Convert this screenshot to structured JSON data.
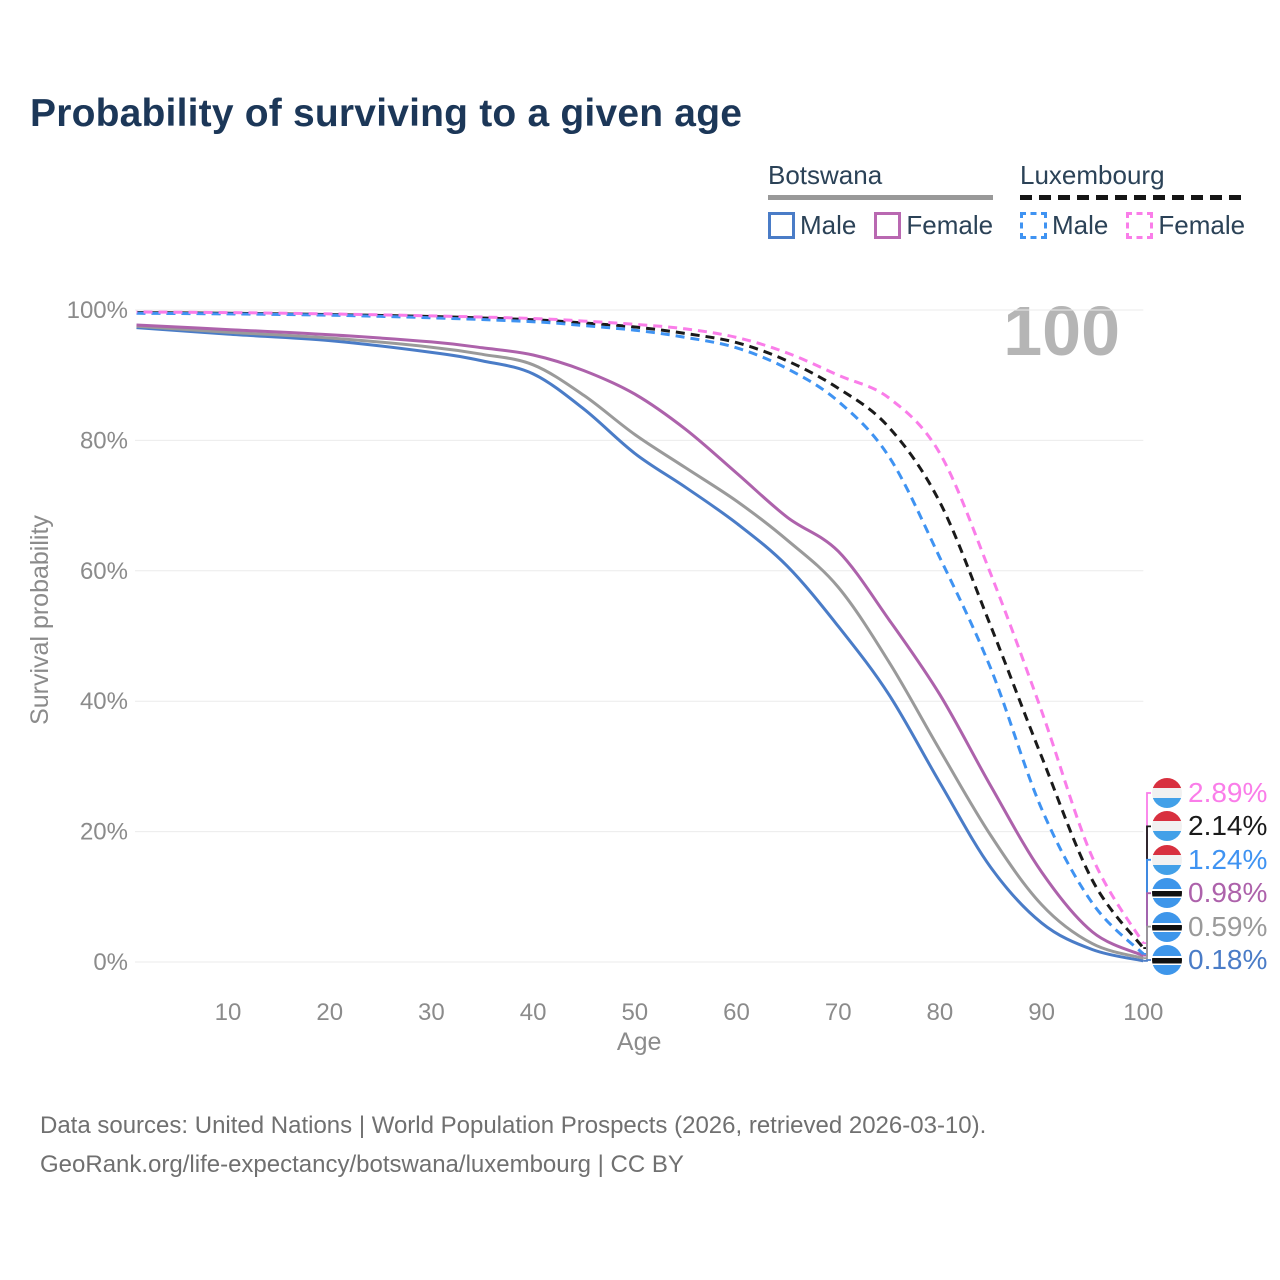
{
  "title": "Probability of surviving to a given age",
  "watermark": "100",
  "legend": {
    "groups": [
      {
        "name": "Botswana",
        "underline_style": "solid",
        "underline_color": "#999999",
        "items": [
          {
            "label": "Male",
            "color": "#4a7cc7",
            "dashed": false
          },
          {
            "label": "Female",
            "color": "#b968b1",
            "dashed": false
          }
        ]
      },
      {
        "name": "Luxembourg",
        "underline_style": "dashed",
        "underline_color": "#151515",
        "items": [
          {
            "label": "Male",
            "color": "#3f93f2",
            "dashed": true
          },
          {
            "label": "Female",
            "color": "#fa7de9",
            "dashed": true
          }
        ]
      }
    ]
  },
  "chart_data": {
    "type": "line",
    "title": "Probability of surviving to a given age",
    "xlabel": "Age",
    "ylabel": "Survival probability",
    "xlim": [
      0,
      100
    ],
    "ylim": [
      0,
      100
    ],
    "grid": "horizontal",
    "x_ticks": [
      "10",
      "20",
      "30",
      "40",
      "50",
      "60",
      "70",
      "80",
      "90",
      "100"
    ],
    "x_tick_values": [
      10,
      20,
      30,
      40,
      50,
      60,
      70,
      80,
      90,
      100
    ],
    "y_ticks": [
      {
        "value": 0,
        "label": "0%"
      },
      {
        "value": 20,
        "label": "20%"
      },
      {
        "value": 40,
        "label": "40%"
      },
      {
        "value": 60,
        "label": "60%"
      },
      {
        "value": 80,
        "label": "80%"
      },
      {
        "value": 100,
        "label": "100%"
      }
    ],
    "series": [
      {
        "id": "luxembourg-female",
        "country": "Luxembourg",
        "sex": "Female",
        "color": "#fa7de9",
        "dash": true,
        "flag": "lu",
        "end_label": "2.89%",
        "points": [
          [
            1,
            99.7
          ],
          [
            10,
            99.6
          ],
          [
            20,
            99.4
          ],
          [
            30,
            99.1
          ],
          [
            40,
            98.7
          ],
          [
            45,
            98.3
          ],
          [
            50,
            97.8
          ],
          [
            55,
            97.1
          ],
          [
            60,
            95.8
          ],
          [
            65,
            93.4
          ],
          [
            70,
            90.0
          ],
          [
            75,
            86.5
          ],
          [
            80,
            78.0
          ],
          [
            85,
            59.5
          ],
          [
            90,
            38.5
          ],
          [
            95,
            16.0
          ],
          [
            100,
            2.89
          ]
        ]
      },
      {
        "id": "luxembourg-both-sexes",
        "country": "Luxembourg",
        "sex": "Both sexes",
        "color": "#1a1a1a",
        "dash": true,
        "flag": "lu",
        "end_label": "2.14%",
        "points": [
          [
            1,
            99.6
          ],
          [
            10,
            99.5
          ],
          [
            20,
            99.3
          ],
          [
            30,
            99.0
          ],
          [
            40,
            98.5
          ],
          [
            45,
            98.0
          ],
          [
            50,
            97.4
          ],
          [
            55,
            96.4
          ],
          [
            60,
            95.0
          ],
          [
            65,
            92.2
          ],
          [
            70,
            88.0
          ],
          [
            75,
            82.0
          ],
          [
            80,
            70.5
          ],
          [
            85,
            51.5
          ],
          [
            90,
            31.5
          ],
          [
            95,
            12.5
          ],
          [
            100,
            2.14
          ]
        ]
      },
      {
        "id": "luxembourg-male",
        "country": "Luxembourg",
        "sex": "Male",
        "color": "#3f93f2",
        "dash": true,
        "flag": "lu",
        "end_label": "1.24%",
        "points": [
          [
            1,
            99.5
          ],
          [
            10,
            99.4
          ],
          [
            20,
            99.2
          ],
          [
            30,
            98.8
          ],
          [
            40,
            98.2
          ],
          [
            45,
            97.6
          ],
          [
            50,
            96.9
          ],
          [
            55,
            95.8
          ],
          [
            60,
            94.2
          ],
          [
            65,
            91.0
          ],
          [
            70,
            86.0
          ],
          [
            75,
            77.5
          ],
          [
            80,
            62.0
          ],
          [
            85,
            45.0
          ],
          [
            90,
            23.5
          ],
          [
            95,
            9.0
          ],
          [
            100,
            1.24
          ]
        ]
      },
      {
        "id": "botswana-female",
        "country": "Botswana",
        "sex": "Female",
        "color": "#ad62ab",
        "dash": false,
        "flag": "bw",
        "end_label": "0.98%",
        "points": [
          [
            1,
            97.7
          ],
          [
            10,
            97.0
          ],
          [
            20,
            96.2
          ],
          [
            30,
            95.1
          ],
          [
            35,
            94.2
          ],
          [
            40,
            93.1
          ],
          [
            45,
            90.7
          ],
          [
            50,
            87.1
          ],
          [
            55,
            81.7
          ],
          [
            60,
            75.0
          ],
          [
            65,
            68.2
          ],
          [
            70,
            63.0
          ],
          [
            75,
            52.5
          ],
          [
            80,
            41.0
          ],
          [
            85,
            27.0
          ],
          [
            90,
            13.8
          ],
          [
            95,
            4.6
          ],
          [
            100,
            0.98
          ]
        ]
      },
      {
        "id": "botswana-both-sexes",
        "country": "Botswana",
        "sex": "Both sexes",
        "color": "#9a9a9a",
        "dash": false,
        "flag": "bw",
        "end_label": "0.59%",
        "points": [
          [
            1,
            97.5
          ],
          [
            10,
            96.6
          ],
          [
            20,
            95.7
          ],
          [
            30,
            94.3
          ],
          [
            35,
            93.2
          ],
          [
            40,
            91.6
          ],
          [
            45,
            86.9
          ],
          [
            50,
            80.9
          ],
          [
            55,
            75.8
          ],
          [
            60,
            70.7
          ],
          [
            65,
            64.7
          ],
          [
            70,
            57.5
          ],
          [
            75,
            46.0
          ],
          [
            80,
            32.5
          ],
          [
            85,
            19.4
          ],
          [
            90,
            8.8
          ],
          [
            95,
            2.8
          ],
          [
            100,
            0.59
          ]
        ]
      },
      {
        "id": "botswana-male",
        "country": "Botswana",
        "sex": "Male",
        "color": "#4a7cc7",
        "dash": false,
        "flag": "bw",
        "end_label": "0.18%",
        "points": [
          [
            1,
            97.3
          ],
          [
            10,
            96.3
          ],
          [
            20,
            95.3
          ],
          [
            30,
            93.5
          ],
          [
            35,
            92.2
          ],
          [
            40,
            90.2
          ],
          [
            45,
            84.8
          ],
          [
            50,
            78.0
          ],
          [
            55,
            72.8
          ],
          [
            60,
            67.3
          ],
          [
            65,
            60.7
          ],
          [
            70,
            51.5
          ],
          [
            75,
            41.0
          ],
          [
            80,
            27.5
          ],
          [
            85,
            14.5
          ],
          [
            90,
            6.0
          ],
          [
            95,
            1.9
          ],
          [
            100,
            0.18
          ]
        ]
      }
    ]
  },
  "footer": {
    "line1": "Data sources: United Nations | World Population Prospects (2026, retrieved 2026-03-10).",
    "line2": "GeoRank.org/life-expectancy/botswana/luxembourg | CC BY"
  }
}
